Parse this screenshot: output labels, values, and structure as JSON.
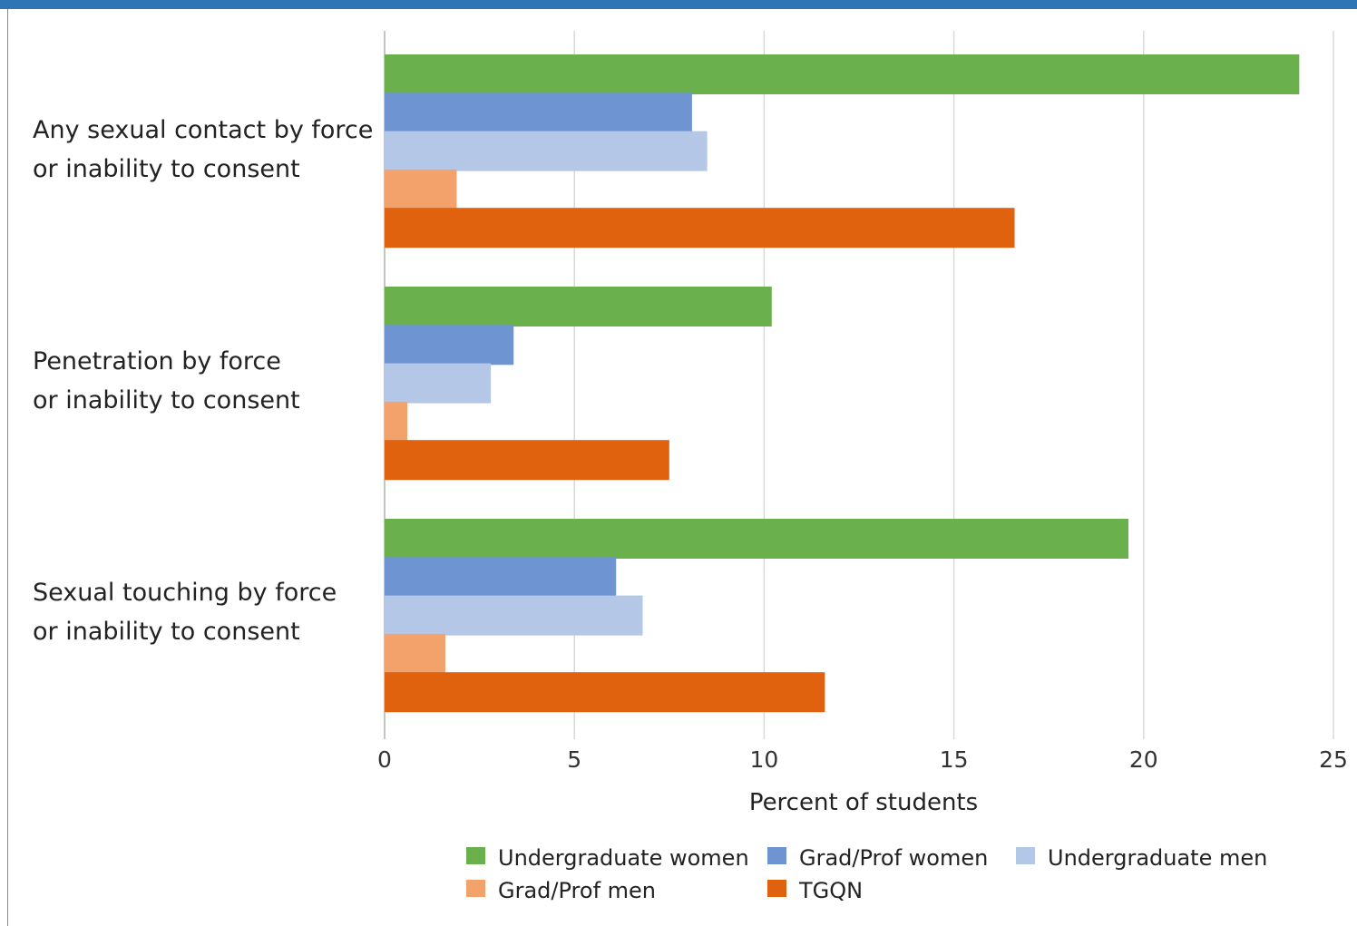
{
  "chart_data": {
    "type": "bar",
    "orientation": "horizontal",
    "xlabel": "Percent of students",
    "xlim": [
      0,
      25
    ],
    "xticks": [
      "0",
      "5",
      "10",
      "15",
      "20",
      "25"
    ],
    "grid": true,
    "legend_position": "bottom",
    "categories": [
      [
        "Any sexual contact by force",
        "or inability to consent"
      ],
      [
        "Penetration by force",
        "or inability to consent"
      ],
      [
        "Sexual touching by force",
        "or inability to consent"
      ]
    ],
    "series": [
      {
        "name": "Undergraduate women",
        "color": "#6ab04c",
        "values": [
          24.1,
          10.2,
          19.6
        ]
      },
      {
        "name": "Grad/Prof women",
        "color": "#6f94d2",
        "values": [
          8.1,
          3.4,
          6.1
        ]
      },
      {
        "name": "Undergraduate men",
        "color": "#b4c7e7",
        "values": [
          8.5,
          2.8,
          6.8
        ]
      },
      {
        "name": "Grad/Prof men",
        "color": "#f4a26b",
        "values": [
          1.9,
          0.6,
          1.6
        ]
      },
      {
        "name": "TGQN",
        "color": "#e0620f",
        "values": [
          16.6,
          7.5,
          11.6
        ]
      }
    ]
  }
}
